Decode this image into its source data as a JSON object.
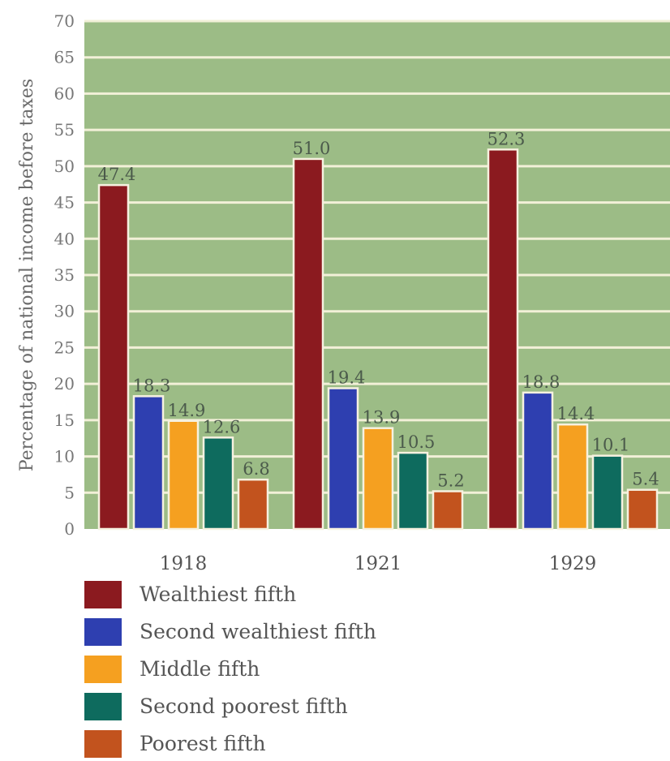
{
  "chart_data": {
    "type": "bar",
    "title": "",
    "xlabel": "",
    "ylabel": "Percentage of national income before taxes",
    "ylim": [
      0,
      70
    ],
    "yticks": [
      0,
      5,
      10,
      15,
      20,
      25,
      30,
      35,
      40,
      45,
      50,
      55,
      60,
      65,
      70
    ],
    "grid": true,
    "legend_placement": "bottom",
    "categories": [
      "1918",
      "1921",
      "1929"
    ],
    "series": [
      {
        "name": "Wealthiest fifth",
        "color": "#8b1a1f",
        "values": [
          47.4,
          51.0,
          52.3
        ],
        "labels": [
          "47.4",
          "51.0",
          "52.3"
        ]
      },
      {
        "name": "Second wealthiest fifth",
        "color": "#2e3fb0",
        "values": [
          18.3,
          19.4,
          18.8
        ],
        "labels": [
          "18.3",
          "19.4",
          "18.8"
        ]
      },
      {
        "name": "Middle fifth",
        "color": "#f5a020",
        "values": [
          14.9,
          13.9,
          14.4
        ],
        "labels": [
          "14.9",
          "13.9",
          "14.4"
        ]
      },
      {
        "name": "Second poorest fifth",
        "color": "#0e6b5e",
        "values": [
          12.6,
          10.5,
          10.1
        ],
        "labels": [
          "12.6",
          "10.5",
          "10.1"
        ]
      },
      {
        "name": "Poorest fifth",
        "color": "#c2531e",
        "values": [
          6.8,
          5.2,
          5.4
        ],
        "labels": [
          "6.8",
          "5.2",
          "5.4"
        ]
      }
    ],
    "colors": {
      "plot_background": "#9cbc86",
      "gridline": "#f2f0d8"
    }
  }
}
